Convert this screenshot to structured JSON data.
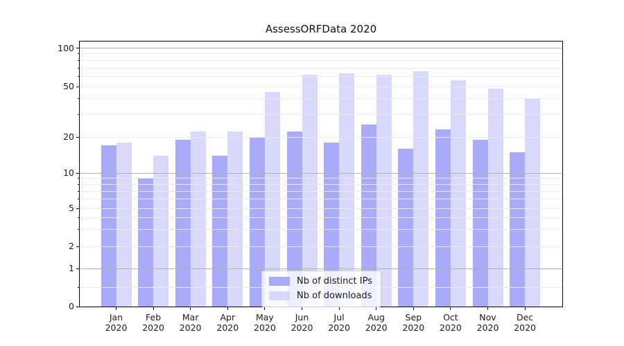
{
  "colors": {
    "grid_major": "#b0b0b0",
    "grid_minor": "#e8e8e8",
    "axis": "#000000",
    "text": "#1a1a1a",
    "legend_border": "#cccccc",
    "background": "#ffffff"
  },
  "x_axis": {
    "year": "2020",
    "months": [
      "Jan",
      "Feb",
      "Mar",
      "Apr",
      "May",
      "Jun",
      "Jul",
      "Aug",
      "Sep",
      "Oct",
      "Nov",
      "Dec"
    ]
  },
  "legend": {
    "items": [
      "Nb of distinct IPs",
      "Nb of downloads"
    ],
    "position": "lower center"
  },
  "chart_data": {
    "type": "bar",
    "title": "AssessORFData 2020",
    "categories": [
      "Jan 2020",
      "Feb 2020",
      "Mar 2020",
      "Apr 2020",
      "May 2020",
      "Jun 2020",
      "Jul 2020",
      "Aug 2020",
      "Sep 2020",
      "Oct 2020",
      "Nov 2020",
      "Dec 2020"
    ],
    "series": [
      {
        "name": "Nb of distinct IPs",
        "color": "#aaaafa",
        "values": [
          17,
          9,
          19,
          14,
          20,
          22,
          18,
          25,
          16,
          23,
          19,
          15
        ]
      },
      {
        "name": "Nb of downloads",
        "color": "#d8d8fa",
        "values": [
          18,
          14,
          22,
          22,
          45,
          62,
          63,
          62,
          66,
          56,
          48,
          40
        ]
      }
    ],
    "yscale": "log-like with 0 baseline",
    "yticks": [
      0,
      1,
      2,
      5,
      10,
      20,
      50,
      100
    ],
    "major_yticks": [
      1,
      10,
      100
    ],
    "minor_yticks": [
      0.5,
      3,
      4,
      6,
      7,
      8,
      9,
      30,
      40,
      60,
      70,
      80,
      90
    ],
    "ylim": [
      0,
      114
    ],
    "grid": "horizontal gridlines drawn over bars",
    "legend_position": "lower center"
  }
}
